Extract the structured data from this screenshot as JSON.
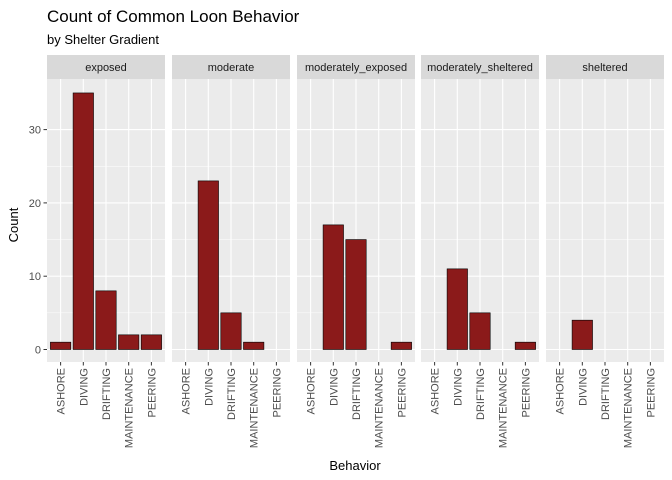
{
  "chart_data": {
    "type": "bar",
    "title": "Count of Common Loon Behavior",
    "subtitle": "by Shelter Gradient",
    "xlabel": "Behavior",
    "ylabel": "Count",
    "categories": [
      "ASHORE",
      "DIVING",
      "DRIFTING",
      "MAINTENANCE",
      "PEERING"
    ],
    "ylim": [
      0,
      36
    ],
    "yticks": [
      0,
      10,
      20,
      30
    ],
    "bar_color": "#8b1a1a",
    "bar_outline": "#000000",
    "panel_background": "#ebebeb",
    "strip_background": "#d9d9d9",
    "grid_color": "#ffffff",
    "grid": true,
    "facets": [
      {
        "name": "exposed",
        "values": [
          1,
          35,
          8,
          2,
          2
        ]
      },
      {
        "name": "moderate",
        "values": [
          0,
          23,
          5,
          1,
          0
        ]
      },
      {
        "name": "moderately_exposed",
        "values": [
          0,
          17,
          15,
          0,
          1
        ]
      },
      {
        "name": "moderately_sheltered",
        "values": [
          0,
          11,
          5,
          0,
          1
        ]
      },
      {
        "name": "sheltered",
        "values": [
          0,
          4,
          0,
          0,
          0
        ]
      }
    ]
  }
}
